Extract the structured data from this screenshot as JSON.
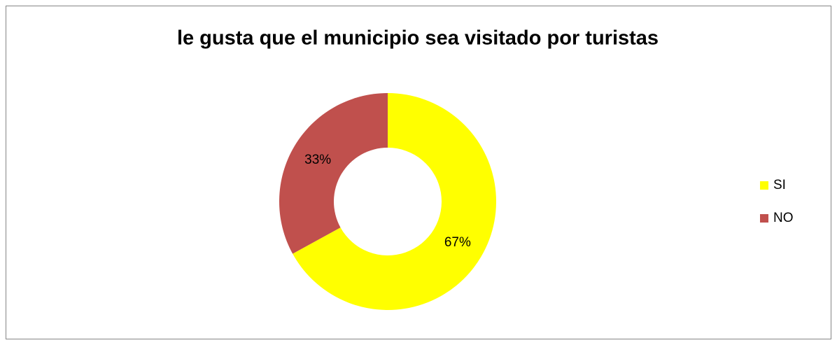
{
  "chart_data": {
    "type": "donut",
    "title": "le gusta que el municipio sea visitado por turistas",
    "categories": [
      "SI",
      "NO"
    ],
    "values": [
      67,
      33
    ],
    "value_labels": [
      "67%",
      "33%"
    ],
    "colors": [
      "#ffff00",
      "#c0504d"
    ],
    "legend": "right"
  }
}
